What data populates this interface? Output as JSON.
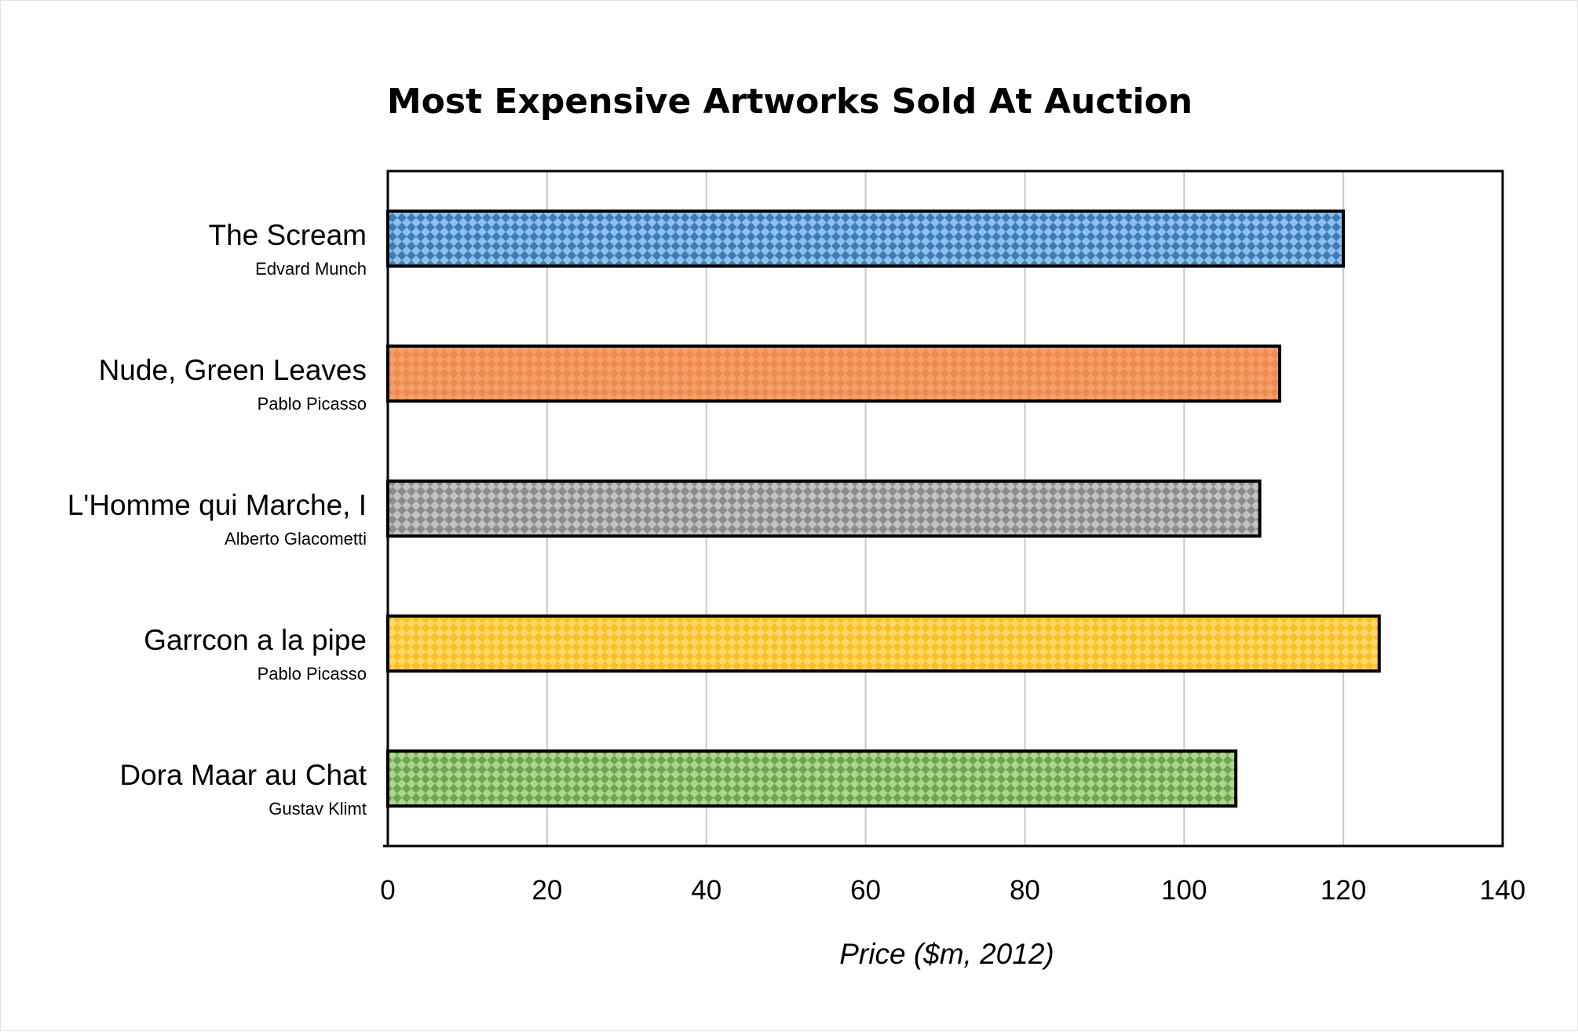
{
  "chart_data": {
    "type": "bar",
    "orientation": "horizontal",
    "title": "Most Expensive Artworks Sold At Auction",
    "xlabel": "Price ($m, 2012)",
    "ylabel": "",
    "xlim": [
      0,
      140
    ],
    "x_ticks": [
      0,
      20,
      40,
      60,
      80,
      100,
      120,
      140
    ],
    "grid": true,
    "categories": [
      "The Scream",
      "Nude, Green Leaves",
      "L'Homme qui Marche, I",
      "Garrcon a la pipe",
      "Dora Maar au Chat"
    ],
    "subtitles": [
      "Edvard Munch",
      "Pablo Picasso",
      "Alberto Glacometti",
      "Pablo Picasso",
      "Gustav Klimt"
    ],
    "values": [
      120,
      112,
      109.5,
      124.5,
      106.5
    ],
    "colors": [
      {
        "base": "#3d7cb8",
        "pattern": "#8ec0ec"
      },
      {
        "base": "#f4a06c",
        "pattern": "#f08a4c"
      },
      {
        "base": "#8c8c8c",
        "pattern": "#c2c2c2"
      },
      {
        "base": "#ffd966",
        "pattern": "#fbbf2a"
      },
      {
        "base": "#b0d490",
        "pattern": "#6aa84f"
      }
    ]
  }
}
